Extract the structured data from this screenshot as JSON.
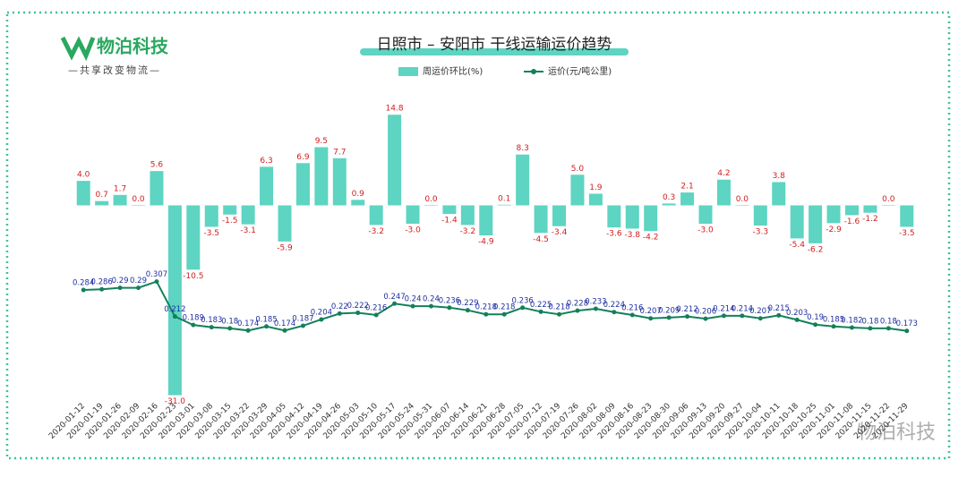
{
  "brand": {
    "name": "物泊科技",
    "slogan": "—共享改变物流—"
  },
  "watermark": "物泊科技",
  "chart_data": {
    "type": "bar+line",
    "title": "日照市 – 安阳市 干线运输运价趋势",
    "categories": [
      "2020-01-12",
      "2020-01-19",
      "2020-01-26",
      "2020-02-09",
      "2020-02-16",
      "2020-02-23",
      "2020-03-01",
      "2020-03-08",
      "2020-03-15",
      "2020-03-22",
      "2020-03-29",
      "2020-04-05",
      "2020-04-12",
      "2020-04-19",
      "2020-04-26",
      "2020-05-03",
      "2020-05-10",
      "2020-05-17",
      "2020-05-24",
      "2020-05-31",
      "2020-06-07",
      "2020-06-14",
      "2020-06-21",
      "2020-06-28",
      "2020-07-05",
      "2020-07-12",
      "2020-07-19",
      "2020-07-26",
      "2020-08-02",
      "2020-08-09",
      "2020-08-16",
      "2020-08-23",
      "2020-08-30",
      "2020-09-06",
      "2020-09-13",
      "2020-09-20",
      "2020-09-27",
      "2020-10-04",
      "2020-10-11",
      "2020-10-18",
      "2020-10-25",
      "2020-11-01",
      "2020-11-08",
      "2020-11-15",
      "2020-11-22",
      "2020-11-29"
    ],
    "series": [
      {
        "name": "周运价环比(%)",
        "color": "#5ed4c2",
        "kind": "bar",
        "values": [
          4.0,
          0.7,
          1.7,
          0.0,
          5.6,
          -31.0,
          -10.5,
          -3.5,
          -1.5,
          -3.1,
          6.3,
          -5.9,
          6.9,
          9.5,
          7.7,
          0.9,
          -3.2,
          14.8,
          -3.0,
          0.0,
          -1.4,
          -3.2,
          -4.9,
          0.1,
          8.3,
          -4.5,
          -3.4,
          5.0,
          1.9,
          -3.6,
          -3.8,
          -4.2,
          0.3,
          2.1,
          -3.0,
          4.2,
          0.0,
          -3.3,
          3.8,
          -5.4,
          -6.2,
          -2.9,
          -1.6,
          -1.2,
          0.0,
          -3.5
        ],
        "value_labels": [
          "4.0",
          "0.7",
          "1.7",
          "0.0",
          "5.6",
          "-31.0",
          "-10.5",
          "-3.5",
          "-1.5",
          "-3.1",
          "6.3",
          "-5.9",
          "6.9",
          "9.5",
          "7.7",
          "0.9",
          "-3.2",
          "14.8",
          "-3.0",
          "0.0",
          "-1.4",
          "-3.2",
          "-4.9",
          "0.1",
          "8.3",
          "-4.5",
          "-3.4",
          "5.0",
          "1.9",
          "-3.6",
          "-3.8",
          "-4.2",
          "0.3",
          "2.1",
          "-3.0",
          "4.2",
          "0.0",
          "-3.3",
          "3.8",
          "-5.4",
          "-6.2",
          "-2.9",
          "-1.6",
          "-1.2",
          "0.0",
          "-3.5"
        ]
      },
      {
        "name": "运价(元/吨公里)",
        "color": "#13805a",
        "kind": "line",
        "axis": "y2",
        "values": [
          0.284,
          0.286,
          0.29,
          0.29,
          0.307,
          0.212,
          0.189,
          0.183,
          0.18,
          0.174,
          0.185,
          0.174,
          0.187,
          0.204,
          0.22,
          0.222,
          0.216,
          0.247,
          0.24,
          0.24,
          0.236,
          0.229,
          0.218,
          0.218,
          0.236,
          0.225,
          0.218,
          0.228,
          0.233,
          0.224,
          0.216,
          0.207,
          0.209,
          0.212,
          0.206,
          0.214,
          0.214,
          0.207,
          0.215,
          0.203,
          0.19,
          0.185,
          0.182,
          0.18,
          0.18,
          0.173
        ]
      }
    ],
    "ylim": [
      -31.5,
      16
    ],
    "y2lim": [
      -0.01,
      0.78
    ]
  }
}
